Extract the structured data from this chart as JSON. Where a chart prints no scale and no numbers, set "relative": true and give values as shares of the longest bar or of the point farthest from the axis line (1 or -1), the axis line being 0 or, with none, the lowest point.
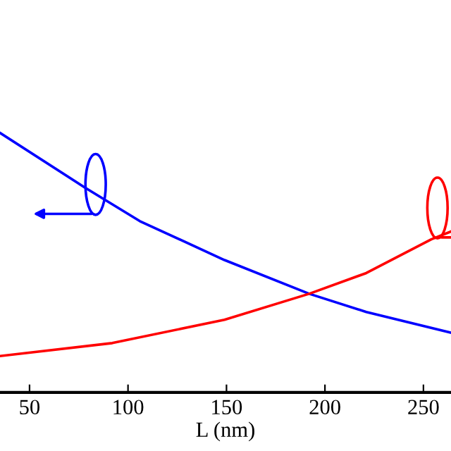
{
  "chart_data": {
    "type": "line",
    "relative": true,
    "xlabel": "L (nm)",
    "xlim": [
      35,
      264
    ],
    "xticks": [
      50,
      100,
      150,
      200,
      250
    ],
    "tick_labels": "x",
    "grid": false,
    "legend": false,
    "marker": "none",
    "line_style": "solid",
    "series": [
      {
        "color": "#0000ff",
        "x": [
          35,
          78,
          106,
          149,
          192,
          221,
          264
        ],
        "values": [
          1,
          0.79,
          0.66,
          0.51,
          0.38,
          0.31,
          0.23
        ]
      },
      {
        "color": "#ff0000",
        "x": [
          35,
          92,
          149,
          192,
          221,
          254,
          264
        ],
        "values": [
          0.14,
          0.19,
          0.28,
          0.38,
          0.46,
          0.59,
          0.62
        ]
      }
    ]
  }
}
